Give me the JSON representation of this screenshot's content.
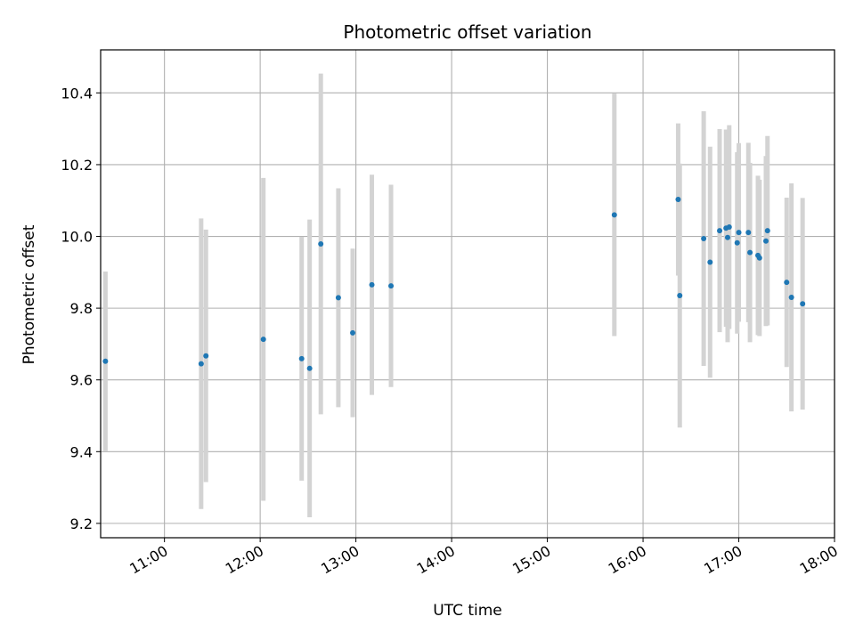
{
  "chart_data": {
    "type": "scatter",
    "title": "Photometric offset variation",
    "xlabel": "UTC time",
    "ylabel": "Photometric offset",
    "x_tick_labels": [
      "11:00",
      "12:00",
      "13:00",
      "14:00",
      "15:00",
      "16:00",
      "17:00",
      "18:00"
    ],
    "y_tick_labels": [
      "9.2",
      "9.4",
      "9.6",
      "9.8",
      "10.0",
      "10.2",
      "10.4"
    ],
    "xlim": [
      "10:20",
      "18:00"
    ],
    "ylim": [
      9.16,
      10.52
    ],
    "grid": true,
    "point_color": "#1f77b4",
    "errorbar_color": "#d3d3d3",
    "points": [
      {
        "x": "10:23",
        "y": 9.652,
        "err": 0.25
      },
      {
        "x": "11:23",
        "y": 9.645,
        "err": 0.405
      },
      {
        "x": "11:26",
        "y": 9.667,
        "err": 0.352
      },
      {
        "x": "12:02",
        "y": 9.713,
        "err": 0.45
      },
      {
        "x": "12:26",
        "y": 9.659,
        "err": 0.34
      },
      {
        "x": "12:31",
        "y": 9.632,
        "err": 0.415
      },
      {
        "x": "12:38",
        "y": 9.979,
        "err": 0.475
      },
      {
        "x": "12:49",
        "y": 9.829,
        "err": 0.305
      },
      {
        "x": "12:58",
        "y": 9.731,
        "err": 0.235
      },
      {
        "x": "13:10",
        "y": 9.865,
        "err": 0.307
      },
      {
        "x": "13:22",
        "y": 9.862,
        "err": 0.282
      },
      {
        "x": "15:42",
        "y": 10.06,
        "err": 0.338
      },
      {
        "x": "16:22",
        "y": 10.103,
        "err": 0.212
      },
      {
        "x": "16:23",
        "y": 9.835,
        "err": 0.368
      },
      {
        "x": "16:38",
        "y": 9.994,
        "err": 0.355
      },
      {
        "x": "16:42",
        "y": 9.928,
        "err": 0.322
      },
      {
        "x": "16:48",
        "y": 10.016,
        "err": 0.283
      },
      {
        "x": "16:52",
        "y": 10.023,
        "err": 0.275
      },
      {
        "x": "16:53",
        "y": 9.997,
        "err": 0.292
      },
      {
        "x": "16:54",
        "y": 10.026,
        "err": 0.284
      },
      {
        "x": "16:59",
        "y": 9.982,
        "err": 0.253
      },
      {
        "x": "17:00",
        "y": 10.011,
        "err": 0.249
      },
      {
        "x": "17:06",
        "y": 10.011,
        "err": 0.25
      },
      {
        "x": "17:07",
        "y": 9.955,
        "err": 0.25
      },
      {
        "x": "17:12",
        "y": 9.947,
        "err": 0.222
      },
      {
        "x": "17:13",
        "y": 9.94,
        "err": 0.218
      },
      {
        "x": "17:17",
        "y": 9.987,
        "err": 0.237
      },
      {
        "x": "17:18",
        "y": 10.016,
        "err": 0.264
      },
      {
        "x": "17:30",
        "y": 9.872,
        "err": 0.236
      },
      {
        "x": "17:33",
        "y": 9.83,
        "err": 0.318
      },
      {
        "x": "17:40",
        "y": 9.812,
        "err": 0.295
      }
    ]
  }
}
